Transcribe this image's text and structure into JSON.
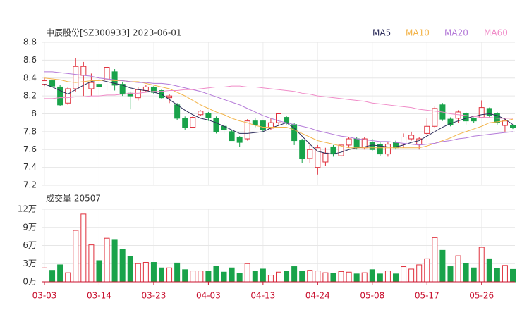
{
  "chart_data": [
    {
      "type": "candlestick",
      "title": "中辰股份[SZ300933] 2023-06-01",
      "up_color": "#e0303c",
      "down_color": "#19a34a",
      "ylim": [
        7.2,
        8.8
      ],
      "yticks": [
        7.2,
        7.4,
        7.6,
        7.8,
        8,
        8.2,
        8.4,
        8.6,
        8.8
      ],
      "grid": true,
      "open": [
        8.33,
        8.37,
        8.3,
        8.12,
        8.28,
        8.43,
        8.28,
        8.33,
        8.38,
        8.47,
        8.33,
        8.23,
        8.18,
        8.26,
        8.3,
        8.26,
        8.18,
        8.1,
        7.95,
        7.85,
        7.99,
        8.0,
        7.95,
        7.86,
        7.8,
        7.74,
        7.72,
        7.92,
        7.92,
        7.84,
        7.9,
        7.96,
        7.88,
        7.7,
        7.5,
        7.4,
        7.46,
        7.63,
        7.53,
        7.65,
        7.72,
        7.62,
        7.68,
        7.66,
        7.55,
        7.68,
        7.66,
        7.72,
        7.66,
        7.78,
        7.86,
        8.1,
        7.94,
        7.95,
        8.0,
        7.95,
        7.96,
        8.06,
        8.0,
        7.87,
        7.87
      ],
      "high": [
        8.4,
        8.38,
        8.32,
        8.3,
        8.62,
        8.58,
        8.45,
        8.35,
        8.53,
        8.5,
        8.36,
        8.25,
        8.3,
        8.32,
        8.31,
        8.27,
        8.22,
        8.12,
        7.97,
        7.98,
        8.04,
        8.02,
        7.97,
        7.9,
        7.82,
        7.75,
        7.94,
        7.95,
        7.93,
        7.95,
        8.0,
        7.98,
        7.9,
        7.72,
        7.68,
        7.65,
        7.62,
        7.65,
        7.67,
        7.74,
        7.74,
        7.74,
        7.72,
        7.68,
        7.68,
        7.7,
        7.78,
        7.8,
        7.74,
        7.95,
        8.08,
        8.12,
        7.96,
        8.04,
        8.02,
        7.96,
        8.15,
        8.07,
        8.02,
        7.95,
        7.88
      ],
      "low": [
        8.31,
        8.3,
        8.09,
        8.1,
        8.25,
        8.2,
        8.2,
        8.2,
        8.26,
        8.26,
        8.2,
        8.05,
        8.15,
        8.24,
        8.22,
        8.17,
        8.12,
        7.93,
        7.82,
        7.84,
        7.98,
        7.92,
        7.78,
        7.78,
        7.7,
        7.63,
        7.7,
        7.85,
        7.8,
        7.82,
        7.88,
        7.88,
        7.65,
        7.45,
        7.45,
        7.32,
        7.42,
        7.52,
        7.5,
        7.62,
        7.6,
        7.6,
        7.58,
        7.53,
        7.52,
        7.6,
        7.62,
        7.7,
        7.6,
        7.76,
        7.84,
        7.92,
        7.86,
        7.9,
        7.88,
        7.9,
        7.95,
        7.96,
        7.88,
        7.8,
        7.83
      ],
      "close": [
        8.37,
        8.31,
        8.1,
        8.28,
        8.53,
        8.53,
        8.35,
        8.3,
        8.52,
        8.32,
        8.22,
        8.2,
        8.27,
        8.3,
        8.24,
        8.18,
        8.2,
        7.95,
        7.85,
        7.96,
        8.03,
        7.96,
        7.8,
        7.82,
        7.7,
        7.68,
        7.92,
        7.88,
        7.82,
        7.9,
        8.0,
        7.9,
        7.7,
        7.5,
        7.6,
        7.62,
        7.56,
        7.55,
        7.65,
        7.72,
        7.62,
        7.72,
        7.6,
        7.55,
        7.66,
        7.62,
        7.74,
        7.76,
        7.72,
        7.86,
        8.06,
        7.94,
        7.88,
        8.02,
        7.92,
        7.92,
        8.07,
        7.98,
        7.9,
        7.92,
        7.85
      ],
      "series": [
        {
          "name": "MA5",
          "color": "#2e2e5c",
          "values": [
            8.33,
            8.3,
            8.26,
            8.22,
            8.27,
            8.32,
            8.36,
            8.38,
            8.36,
            8.34,
            8.32,
            8.29,
            8.27,
            8.26,
            8.24,
            8.22,
            8.16,
            8.1,
            8.04,
            7.99,
            7.95,
            7.93,
            7.9,
            7.86,
            7.82,
            7.78,
            7.78,
            7.79,
            7.8,
            7.84,
            7.87,
            7.9,
            7.84,
            7.75,
            7.66,
            7.58,
            7.56,
            7.55,
            7.57,
            7.6,
            7.62,
            7.63,
            7.65,
            7.64,
            7.63,
            7.63,
            7.65,
            7.68,
            7.7,
            7.75,
            7.8,
            7.85,
            7.89,
            7.92,
            7.95,
            7.97,
            7.99,
            8.0,
            7.98,
            7.94,
            7.88
          ]
        },
        {
          "name": "MA10",
          "color": "#f3b44a",
          "values": [
            8.4,
            8.39,
            8.38,
            8.36,
            8.35,
            8.36,
            8.37,
            8.37,
            8.38,
            8.37,
            8.37,
            8.36,
            8.36,
            8.34,
            8.32,
            8.3,
            8.28,
            8.24,
            8.2,
            8.15,
            8.1,
            8.06,
            8.02,
            7.99,
            7.95,
            7.92,
            7.9,
            7.87,
            7.85,
            7.85,
            7.85,
            7.85,
            7.82,
            7.78,
            7.74,
            7.7,
            7.68,
            7.66,
            7.64,
            7.62,
            7.62,
            7.62,
            7.62,
            7.62,
            7.62,
            7.62,
            7.62,
            7.62,
            7.62,
            7.64,
            7.67,
            7.7,
            7.73,
            7.77,
            7.8,
            7.83,
            7.86,
            7.9,
            7.91,
            7.92,
            7.94
          ]
        },
        {
          "name": "MA20",
          "color": "#b47ad8",
          "values": [
            8.47,
            8.47,
            8.46,
            8.45,
            8.44,
            8.43,
            8.42,
            8.4,
            8.39,
            8.38,
            8.37,
            8.36,
            8.35,
            8.35,
            8.34,
            8.34,
            8.33,
            8.31,
            8.29,
            8.27,
            8.25,
            8.22,
            8.19,
            8.16,
            8.13,
            8.1,
            8.06,
            8.02,
            7.98,
            7.95,
            7.92,
            7.9,
            7.88,
            7.86,
            7.84,
            7.81,
            7.79,
            7.77,
            7.75,
            7.74,
            7.72,
            7.71,
            7.7,
            7.69,
            7.69,
            7.68,
            7.67,
            7.66,
            7.65,
            7.66,
            7.67,
            7.69,
            7.7,
            7.72,
            7.73,
            7.75,
            7.76,
            7.77,
            7.78,
            7.79,
            7.8
          ]
        },
        {
          "name": "MA60",
          "color": "#f08cc8",
          "values": [
            8.17,
            8.17,
            8.18,
            8.18,
            8.19,
            8.19,
            8.2,
            8.2,
            8.21,
            8.21,
            8.22,
            8.23,
            8.23,
            8.24,
            8.25,
            8.25,
            8.26,
            8.26,
            8.27,
            8.27,
            8.28,
            8.29,
            8.3,
            8.3,
            8.31,
            8.31,
            8.3,
            8.3,
            8.29,
            8.28,
            8.27,
            8.26,
            8.25,
            8.23,
            8.22,
            8.2,
            8.19,
            8.18,
            8.17,
            8.16,
            8.15,
            8.14,
            8.12,
            8.11,
            8.1,
            8.09,
            8.08,
            8.07,
            8.05,
            8.04,
            8.03,
            8.02,
            8.0,
            7.99,
            7.98,
            7.97,
            7.96,
            7.96,
            7.95,
            7.95,
            7.95
          ]
        }
      ]
    },
    {
      "type": "bar",
      "title": "成交量 20507",
      "categories": [
        "03-03",
        null,
        null,
        null,
        null,
        null,
        null,
        "03-14",
        null,
        null,
        null,
        null,
        null,
        null,
        "03-23",
        null,
        null,
        null,
        null,
        null,
        null,
        "04-03",
        null,
        null,
        null,
        null,
        null,
        null,
        "04-13",
        null,
        null,
        null,
        null,
        null,
        null,
        "04-24",
        null,
        null,
        null,
        null,
        null,
        null,
        "05-08",
        null,
        null,
        null,
        null,
        null,
        null,
        "05-17",
        null,
        null,
        null,
        null,
        null,
        null,
        "05-26",
        null,
        null,
        null,
        null
      ],
      "values": [
        2.3,
        1.9,
        2.8,
        1.5,
        8.5,
        11.2,
        6.1,
        3.5,
        7.2,
        7.0,
        5.4,
        4.2,
        3.0,
        3.2,
        3.2,
        2.3,
        2.3,
        3.1,
        2.0,
        1.8,
        1.8,
        1.8,
        2.6,
        1.6,
        2.3,
        1.4,
        3.0,
        1.8,
        2.1,
        1.1,
        1.6,
        1.8,
        2.5,
        1.7,
        1.9,
        1.8,
        1.5,
        1.4,
        1.7,
        1.6,
        1.3,
        1.5,
        2.0,
        1.3,
        1.8,
        1.3,
        2.5,
        2.1,
        2.8,
        3.8,
        7.3,
        5.2,
        2.5,
        4.3,
        3.0,
        2.3,
        5.7,
        3.8,
        2.2,
        2.7,
        2.05
      ],
      "ylim": [
        0,
        12
      ],
      "yticks": [
        {
          "value": 0,
          "label": "0万"
        },
        {
          "value": 3,
          "label": "3万"
        },
        {
          "value": 6,
          "label": "6万"
        },
        {
          "value": 9,
          "label": "9万"
        },
        {
          "value": 12,
          "label": "12万"
        }
      ],
      "grid": true
    }
  ]
}
